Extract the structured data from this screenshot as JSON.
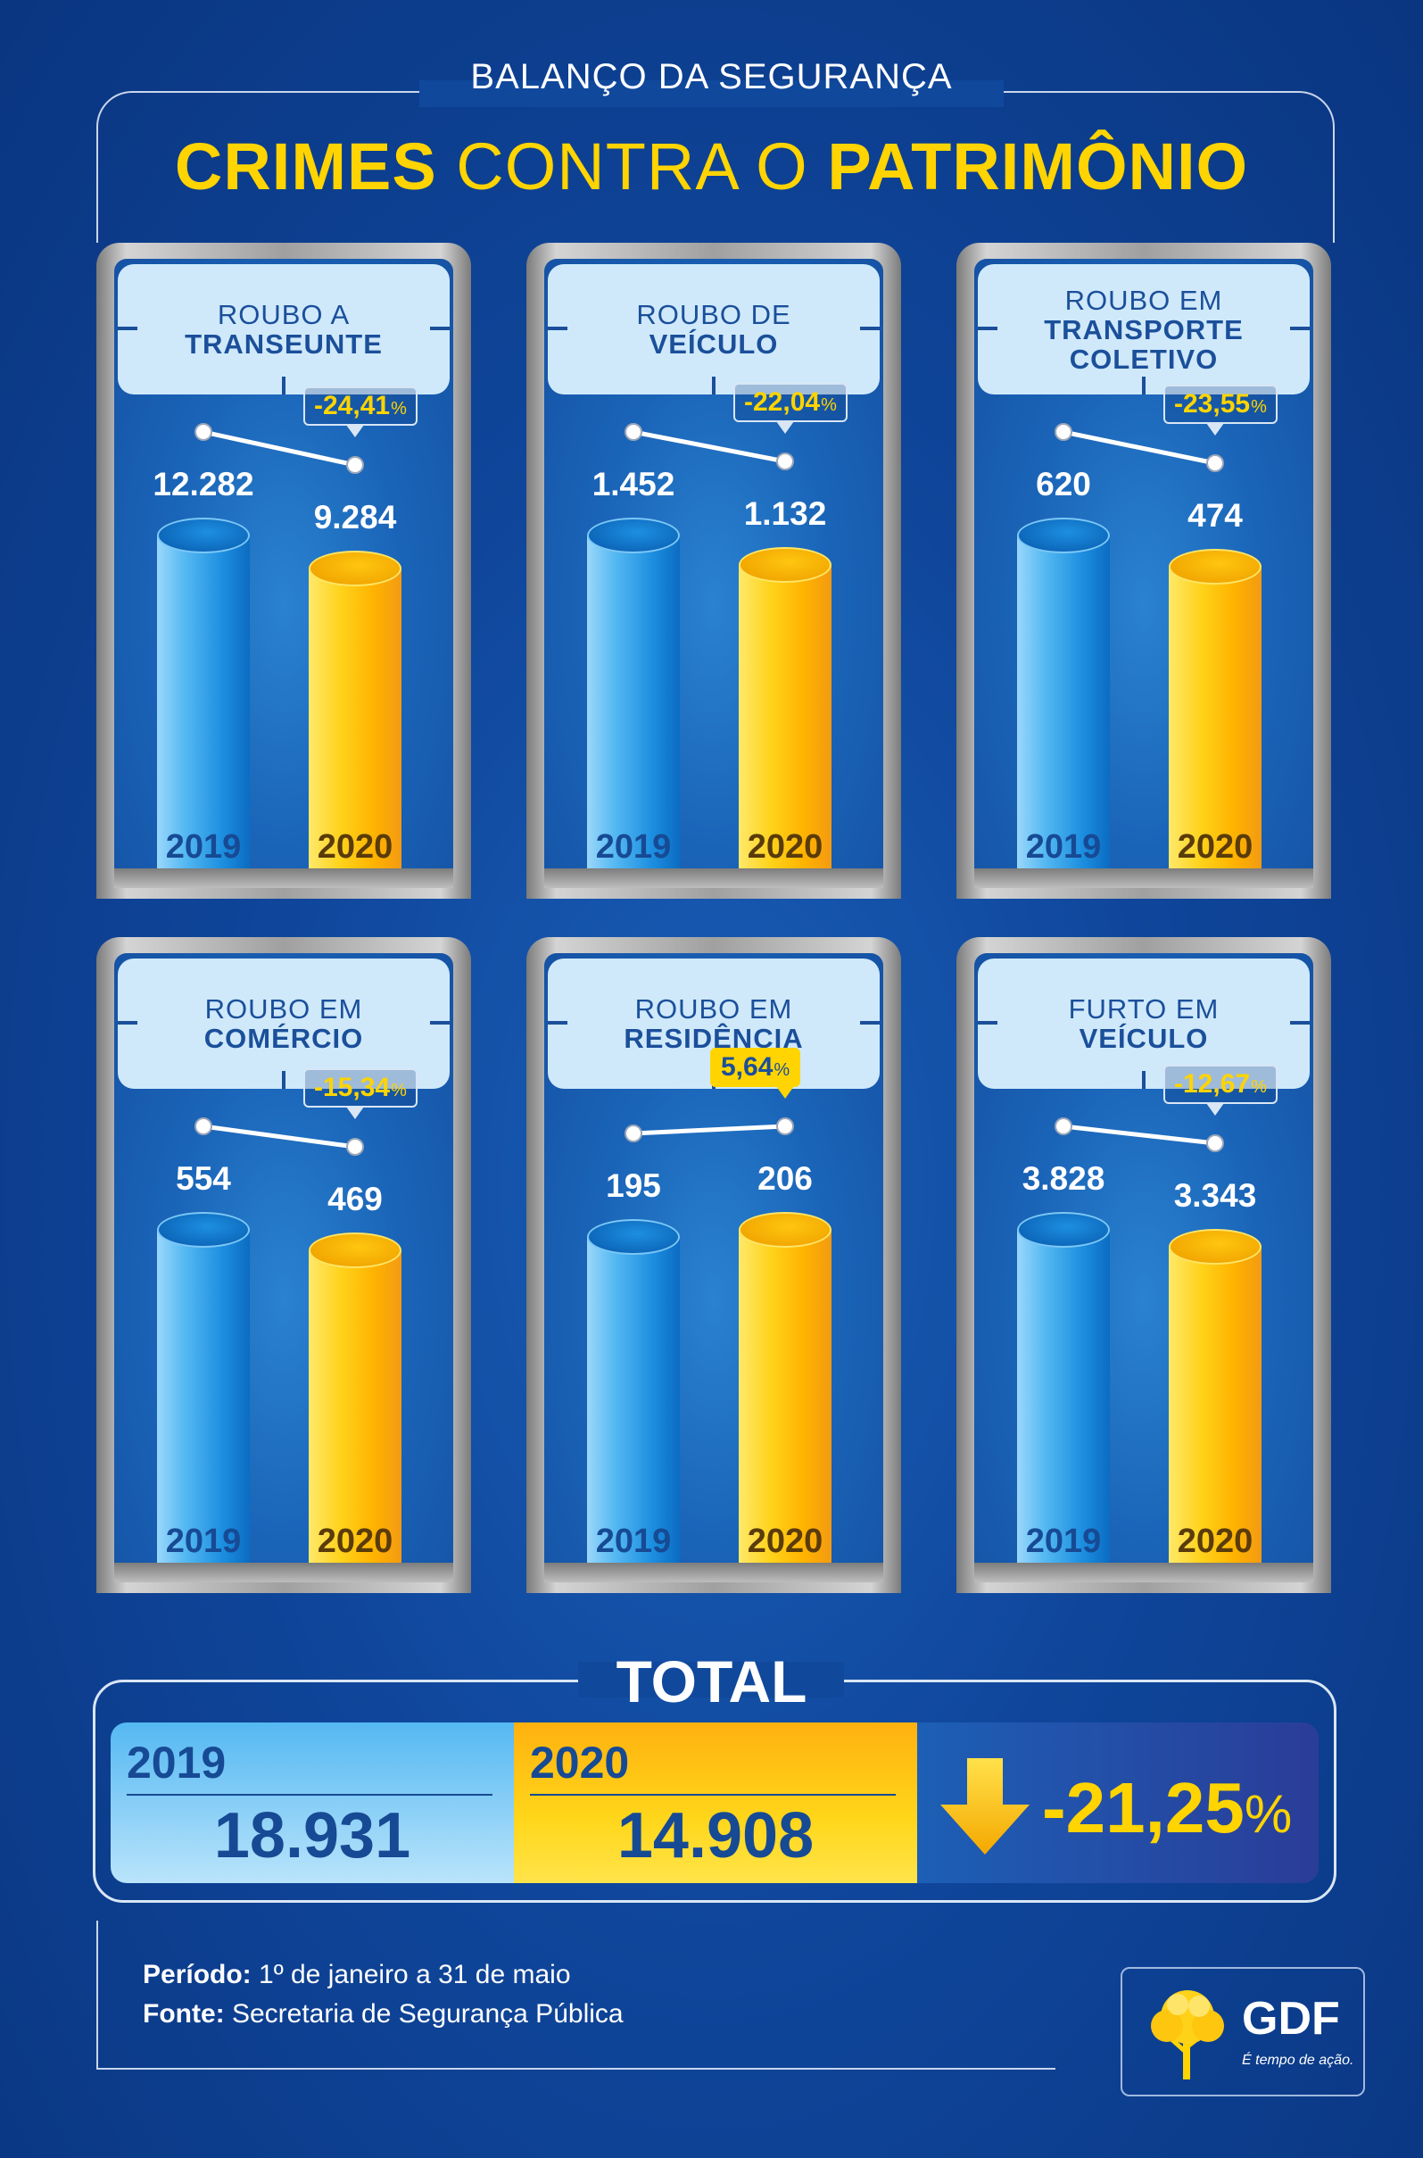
{
  "header": {
    "supertitle": "BALANÇO DA SEGURANÇA",
    "title_part1": "CRIMES",
    "title_part2": " CONTRA O ",
    "title_part3": "PATRIMÔNIO"
  },
  "chart_data": [
    {
      "type": "bar",
      "title_line1": "ROUBO A",
      "title_line2": "TRANSEUNTE",
      "categories": [
        "2019",
        "2020"
      ],
      "values": [
        12282,
        9284
      ],
      "value_labels": [
        "12.282",
        "9.284"
      ],
      "change_label": "-24,41",
      "change_unit": "%",
      "change_value": -24.41
    },
    {
      "type": "bar",
      "title_line1": "ROUBO DE",
      "title_line2": "VEÍCULO",
      "categories": [
        "2019",
        "2020"
      ],
      "values": [
        1452,
        1132
      ],
      "value_labels": [
        "1.452",
        "1.132"
      ],
      "change_label": "-22,04",
      "change_unit": "%",
      "change_value": -22.04
    },
    {
      "type": "bar",
      "title_line1": "ROUBO EM",
      "title_line2": "TRANSPORTE",
      "title_line3": "COLETIVO",
      "categories": [
        "2019",
        "2020"
      ],
      "values": [
        620,
        474
      ],
      "value_labels": [
        "620",
        "474"
      ],
      "change_label": "-23,55",
      "change_unit": "%",
      "change_value": -23.55
    },
    {
      "type": "bar",
      "title_line1": "ROUBO EM",
      "title_line2": "COMÉRCIO",
      "categories": [
        "2019",
        "2020"
      ],
      "values": [
        554,
        469
      ],
      "value_labels": [
        "554",
        "469"
      ],
      "change_label": "-15,34",
      "change_unit": "%",
      "change_value": -15.34
    },
    {
      "type": "bar",
      "title_line1": "ROUBO EM",
      "title_line2": "RESIDÊNCIA",
      "categories": [
        "2019",
        "2020"
      ],
      "values": [
        195,
        206
      ],
      "value_labels": [
        "195",
        "206"
      ],
      "change_label": "5,64",
      "change_unit": "%",
      "change_value": 5.64
    },
    {
      "type": "bar",
      "title_line1": "FURTO EM",
      "title_line2": "VEÍCULO",
      "categories": [
        "2019",
        "2020"
      ],
      "values": [
        3828,
        3343
      ],
      "value_labels": [
        "3.828",
        "3.343"
      ],
      "change_label": "-12,67",
      "change_unit": "%",
      "change_value": -12.67
    }
  ],
  "total": {
    "title": "TOTAL",
    "year_2019": "2019",
    "value_2019": "18.931",
    "year_2020": "2020",
    "value_2020": "14.908",
    "change_number": "-21,25",
    "change_unit": "%"
  },
  "footer": {
    "period_label": "Período:",
    "period_value": " 1º de janeiro a 31 de maio",
    "source_label": "Fonte:",
    "source_value": " Secretaria de Segurança Pública"
  },
  "logo": {
    "name": "GDF",
    "slogan": "É tempo de ação."
  },
  "colors": {
    "blue_2019": "#1d8fe0",
    "yellow_2020": "#ffd21a",
    "accent": "#ffd400",
    "navy": "#174a94"
  }
}
